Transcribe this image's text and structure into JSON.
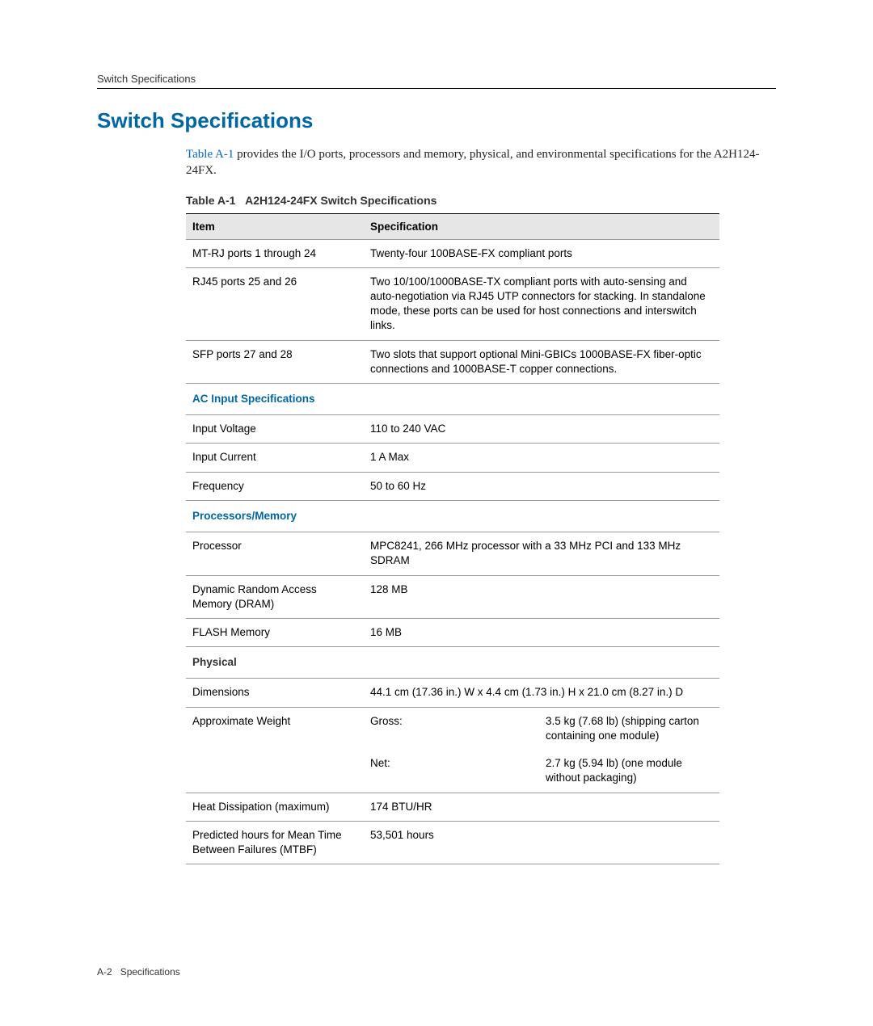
{
  "header": {
    "running_head": "Switch Specifications"
  },
  "title": "Switch Specifications",
  "intro": {
    "link_text": "Table A-1",
    "rest": " provides the I/O ports, processors and memory, physical, and environmental specifications for the A2H124-24FX."
  },
  "table": {
    "caption_prefix": "Table A-1",
    "caption_rest": "A2H124-24FX Switch Specifications",
    "headers": {
      "item": "Item",
      "spec": "Specification"
    },
    "rows": {
      "mtrj": {
        "item": "MT-RJ ports 1 through 24",
        "spec": "Twenty-four 100BASE-FX compliant ports"
      },
      "rj45": {
        "item": "RJ45 ports 25 and 26",
        "spec": "Two 10/100/1000BASE-TX compliant ports with auto-sensing and auto-negotiation via RJ45 UTP connectors for stacking. In standalone mode, these ports can be used for host connections and interswitch links."
      },
      "sfp": {
        "item": "SFP ports 27 and 28",
        "spec": "Two slots that support optional Mini-GBICs 1000BASE-FX fiber-optic connections and 1000BASE-T copper connections."
      }
    },
    "sections": {
      "ac": {
        "title": "AC Input Specifications",
        "voltage": {
          "item": "Input Voltage",
          "spec": "110 to 240 VAC"
        },
        "current": {
          "item": "Input Current",
          "spec": "1 A Max"
        },
        "freq": {
          "item": "Frequency",
          "spec": "50 to 60 Hz"
        }
      },
      "proc": {
        "title": "Processors/Memory",
        "processor": {
          "item": "Processor",
          "spec": "MPC8241, 266 MHz processor with a 33 MHz PCI and 133 MHz SDRAM"
        },
        "dram": {
          "item": "Dynamic Random Access Memory (DRAM)",
          "spec": "128 MB"
        },
        "flash": {
          "item": "FLASH Memory",
          "spec": "16 MB"
        }
      },
      "phys": {
        "title": "Physical",
        "dimensions": {
          "item": "Dimensions",
          "spec": "44.1 cm (17.36 in.) W x 4.4 cm (1.73 in.) H x 21.0 cm (8.27 in.) D"
        },
        "weight": {
          "item": "Approximate Weight",
          "gross_label": "Gross:",
          "gross_val": "3.5 kg (7.68 lb) (shipping carton containing one module)",
          "net_label": "Net:",
          "net_val": "2.7 kg (5.94 lb) (one module without packaging)"
        },
        "heat": {
          "item": "Heat Dissipation (maximum)",
          "spec": "174 BTU/HR"
        },
        "mtbf": {
          "item": "Predicted hours for Mean Time Between Failures (MTBF)",
          "spec": "53,501 hours"
        }
      }
    }
  },
  "footer": {
    "page_num": "A-2",
    "section": "Specifications"
  },
  "colors": {
    "heading_blue": "#0066a4",
    "link_blue": "#0066cc",
    "rule_gray": "#999999",
    "header_bg": "#e6e6e6",
    "text": "#333333"
  }
}
